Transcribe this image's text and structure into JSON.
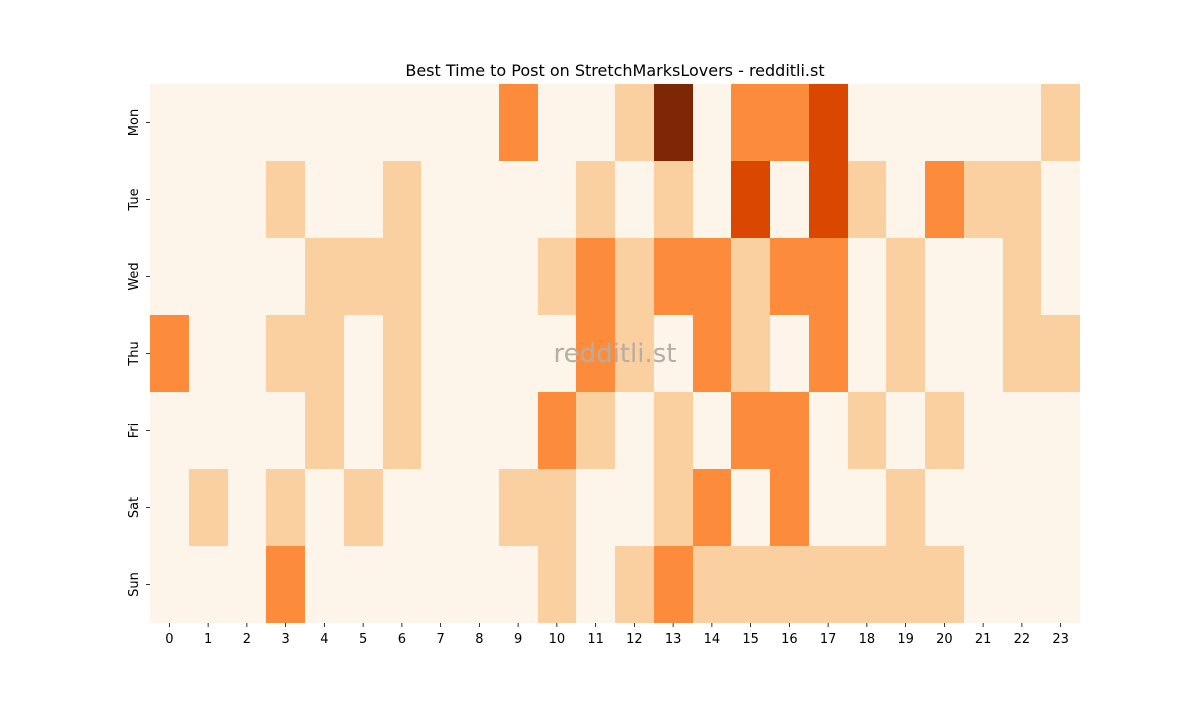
{
  "chart_data": {
    "type": "heatmap",
    "title": "Best Time to Post on StretchMarksLovers - redditli.st",
    "watermark": "redditli.st",
    "x_labels": [
      "0",
      "1",
      "2",
      "3",
      "4",
      "5",
      "6",
      "7",
      "8",
      "9",
      "10",
      "11",
      "12",
      "13",
      "14",
      "15",
      "16",
      "17",
      "18",
      "19",
      "20",
      "21",
      "22",
      "23"
    ],
    "y_labels": [
      "Mon",
      "Tue",
      "Wed",
      "Thu",
      "Fri",
      "Sat",
      "Sun"
    ],
    "colorbar": false,
    "colormap": "Oranges",
    "palette": [
      "#fef5ea",
      "#fbd0a1",
      "#fc8c3b",
      "#d94701",
      "#7f2704"
    ],
    "values": [
      [
        0,
        0,
        0,
        0,
        0,
        0,
        0,
        0,
        0,
        2,
        0,
        0,
        1,
        4,
        0,
        2,
        2,
        3,
        0,
        0,
        0,
        0,
        0,
        1
      ],
      [
        0,
        0,
        0,
        1,
        0,
        0,
        1,
        0,
        0,
        0,
        0,
        1,
        0,
        1,
        0,
        3,
        0,
        3,
        1,
        0,
        2,
        1,
        1,
        0
      ],
      [
        0,
        0,
        0,
        0,
        1,
        1,
        1,
        0,
        0,
        0,
        1,
        2,
        1,
        2,
        2,
        1,
        2,
        2,
        0,
        1,
        0,
        0,
        1,
        0
      ],
      [
        2,
        0,
        0,
        1,
        1,
        0,
        1,
        0,
        0,
        0,
        0,
        2,
        1,
        0,
        2,
        1,
        0,
        2,
        0,
        1,
        0,
        0,
        1,
        1
      ],
      [
        0,
        0,
        0,
        0,
        1,
        0,
        1,
        0,
        0,
        0,
        2,
        1,
        0,
        1,
        0,
        2,
        2,
        0,
        1,
        0,
        1,
        0,
        0,
        0
      ],
      [
        0,
        1,
        0,
        1,
        0,
        1,
        0,
        0,
        0,
        1,
        1,
        0,
        0,
        1,
        2,
        0,
        2,
        0,
        0,
        1,
        0,
        0,
        0,
        0
      ],
      [
        0,
        0,
        0,
        2,
        0,
        0,
        0,
        0,
        0,
        0,
        1,
        0,
        1,
        2,
        1,
        1,
        1,
        1,
        1,
        1,
        1,
        0,
        0,
        0
      ]
    ]
  }
}
